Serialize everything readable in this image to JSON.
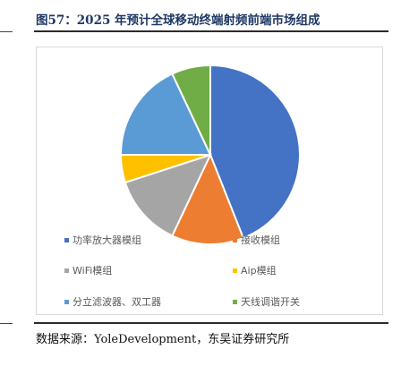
{
  "figure": {
    "title": "图57：2025 年预计全球移动终端射频前端市场组成",
    "source": "数据来源：YoleDevelopment，东吴证券研究所"
  },
  "chart_data": {
    "type": "pie",
    "title": "",
    "labels": [
      "功率放大器模组",
      "接收模组",
      "WiFi模组",
      "Aip模组",
      "分立滤波器、双工器",
      "天线调谐开关"
    ],
    "values": [
      44,
      13,
      13,
      5,
      18,
      7
    ],
    "colors": [
      "#4472c4",
      "#ed7d31",
      "#a5a5a5",
      "#ffc000",
      "#5b9bd5",
      "#70ad47"
    ],
    "start_angle_deg": 0,
    "direction": "clockwise",
    "legend_position": "bottom"
  }
}
